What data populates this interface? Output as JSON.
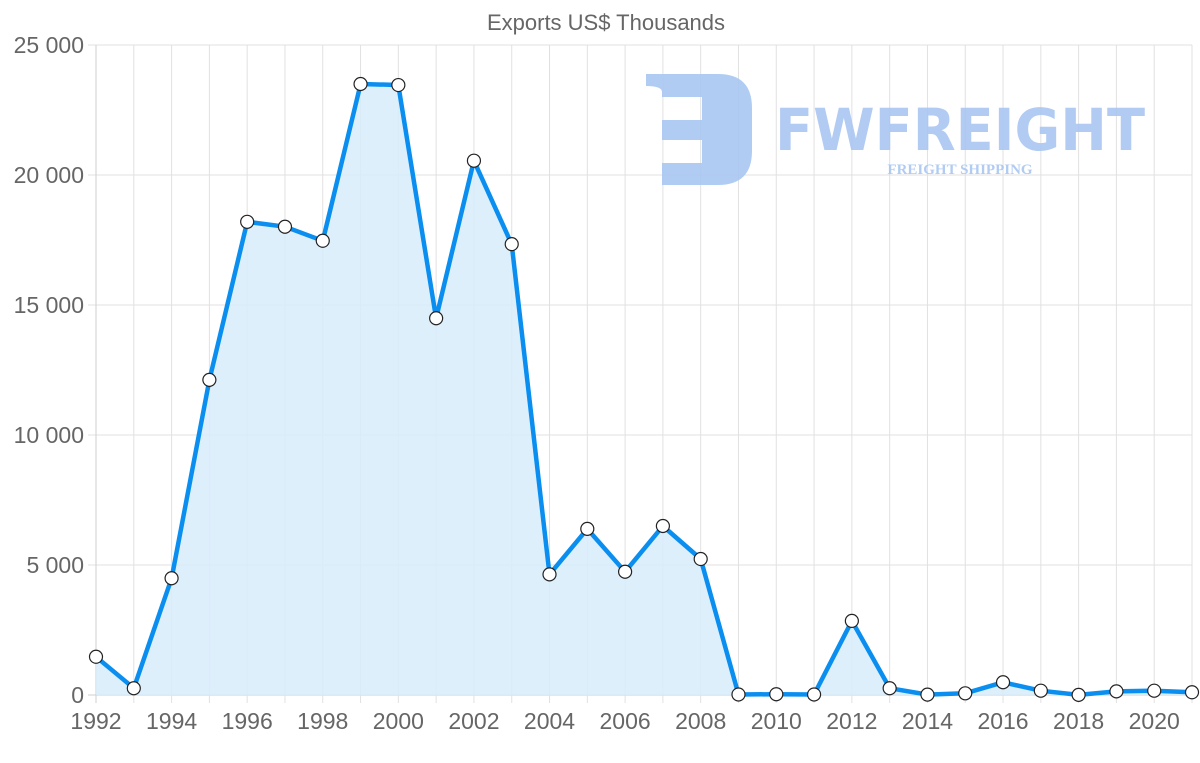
{
  "chart_data": {
    "type": "area",
    "title": "Exports US$ Thousands",
    "xlabel": "",
    "ylabel": "",
    "ylim": [
      0,
      25000
    ],
    "yticks": [
      0,
      5000,
      10000,
      15000,
      20000,
      25000
    ],
    "ytick_labels": [
      "0",
      "5 000",
      "10 000",
      "15 000",
      "20 000",
      "25 000"
    ],
    "xtick_labels": [
      "1992",
      "1994",
      "1996",
      "1998",
      "2000",
      "2002",
      "2004",
      "2006",
      "2008",
      "2010",
      "2012",
      "2014",
      "2016",
      "2018",
      "2020"
    ],
    "grid": true,
    "legend": null,
    "x": [
      1992,
      1993,
      1994,
      1995,
      1996,
      1997,
      1998,
      1999,
      2000,
      2001,
      2002,
      2003,
      2004,
      2005,
      2006,
      2007,
      2008,
      2009,
      2010,
      2011,
      2012,
      2013,
      2014,
      2015,
      2016,
      2017,
      2018,
      2019,
      2020,
      2021
    ],
    "series": [
      {
        "name": "Exports",
        "color": "#0a8ff0",
        "fill": "#d8ecfc",
        "values": [
          1470,
          260,
          4490,
          12120,
          18200,
          18010,
          17470,
          23500,
          23460,
          14490,
          20550,
          17340,
          4640,
          6390,
          4740,
          6500,
          5230,
          20,
          30,
          20,
          2850,
          260,
          15,
          65,
          490,
          165,
          5,
          140,
          165,
          105
        ]
      }
    ]
  },
  "watermark": {
    "brand": "FWFREIGHT",
    "tagline": "FREIGHT SHIPPING",
    "color": "#a9c6f2"
  }
}
